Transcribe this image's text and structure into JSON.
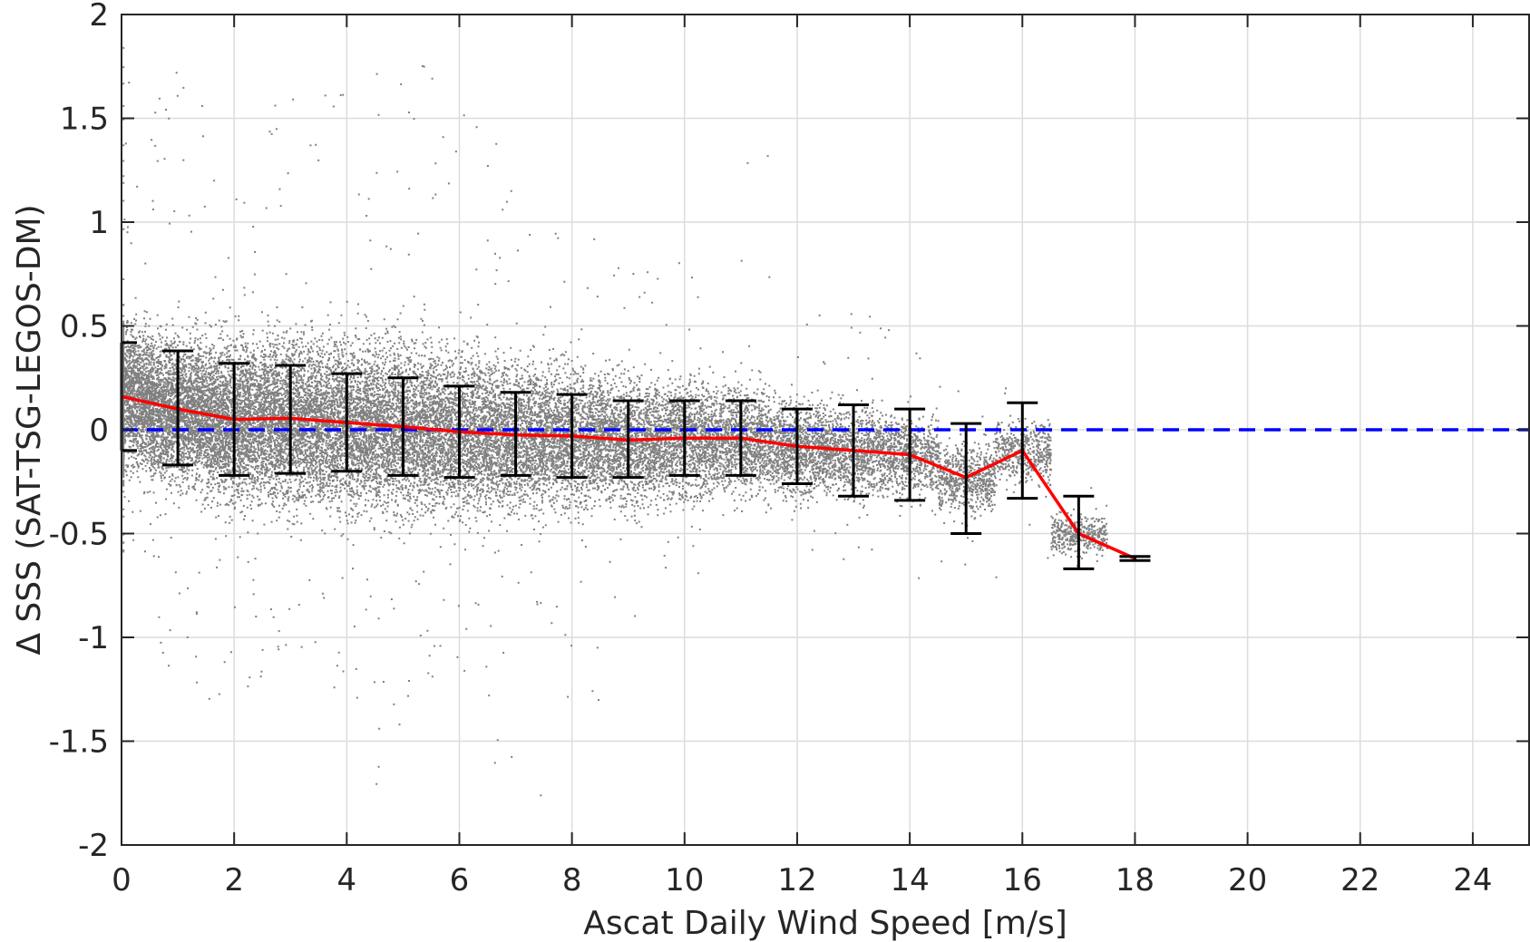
{
  "chart_data": {
    "type": "scatter",
    "title": "",
    "xlabel": "Ascat Daily Wind Speed [m/s]",
    "ylabel": "Δ SSS (SAT-TSG-LEGOS-DM)",
    "xlim": [
      0,
      25
    ],
    "ylim": [
      -2,
      2
    ],
    "xticks": [
      0,
      2,
      4,
      6,
      8,
      10,
      12,
      14,
      16,
      18,
      20,
      22,
      24
    ],
    "yticks": [
      -2,
      -1.5,
      -1,
      -0.5,
      0,
      0.5,
      1,
      1.5,
      2
    ],
    "xtick_labels": [
      "0",
      "2",
      "4",
      "6",
      "8",
      "10",
      "12",
      "14",
      "16",
      "18",
      "20",
      "22",
      "24"
    ],
    "ytick_labels": [
      "-2",
      "-1.5",
      "-1",
      "-0.5",
      "0",
      "0.5",
      "1",
      "1.5",
      "2"
    ],
    "grid": true,
    "colors": {
      "scatter": "#808080",
      "mean_line": "#ff0000",
      "zero_line": "#0000ff",
      "errorbars": "#000000",
      "grid": "#dcdcdc",
      "axes": "#262626"
    },
    "reference_line": {
      "y": 0,
      "style": "dashed"
    },
    "binned_mean": {
      "x": [
        0,
        1,
        2,
        3,
        4,
        5,
        6,
        7,
        8,
        9,
        10,
        11,
        12,
        13,
        14,
        15,
        16,
        17,
        18
      ],
      "y": [
        0.16,
        0.1,
        0.05,
        0.055,
        0.035,
        0.015,
        -0.01,
        -0.025,
        -0.03,
        -0.05,
        -0.04,
        -0.04,
        -0.08,
        -0.1,
        -0.12,
        -0.23,
        -0.1,
        -0.5,
        -0.62
      ],
      "lower": [
        -0.1,
        -0.17,
        -0.22,
        -0.21,
        -0.2,
        -0.22,
        -0.23,
        -0.22,
        -0.23,
        -0.23,
        -0.22,
        -0.22,
        -0.26,
        -0.32,
        -0.34,
        -0.5,
        -0.33,
        -0.67,
        -0.63
      ],
      "upper": [
        0.42,
        0.38,
        0.32,
        0.31,
        0.27,
        0.25,
        0.21,
        0.18,
        0.17,
        0.14,
        0.14,
        0.14,
        0.1,
        0.12,
        0.1,
        0.03,
        0.13,
        -0.32,
        -0.61
      ]
    },
    "scatter_density": {
      "note_free": true,
      "wind_bins": [
        0,
        1,
        2,
        3,
        4,
        5,
        6,
        7,
        8,
        9,
        10,
        11,
        12,
        13,
        14,
        15,
        16,
        17
      ],
      "center": [
        0.16,
        0.1,
        0.05,
        0.055,
        0.035,
        0.015,
        -0.01,
        -0.025,
        -0.03,
        -0.05,
        -0.04,
        -0.04,
        -0.08,
        -0.1,
        -0.12,
        -0.23,
        -0.1,
        -0.5
      ],
      "spread": [
        0.26,
        0.27,
        0.3,
        0.31,
        0.32,
        0.32,
        0.3,
        0.28,
        0.26,
        0.24,
        0.22,
        0.2,
        0.18,
        0.17,
        0.15,
        0.13,
        0.12,
        0.08
      ],
      "extreme_high": [
        1.88,
        1.75,
        1.27,
        1.65,
        1.76,
        1.92,
        1.88,
        1.43,
        1.03,
        0.8,
        0.85,
        1.43,
        0.58,
        0.57,
        0.55,
        0.33,
        0.23,
        -0.25
      ],
      "extreme_low": [
        -0.6,
        -1.22,
        -1.3,
        -1.15,
        -1.33,
        -1.8,
        -1.48,
        -1.83,
        -1.53,
        -0.9,
        -0.7,
        -0.55,
        -0.6,
        -0.65,
        -0.75,
        -0.75,
        -0.72,
        -0.7
      ]
    }
  }
}
